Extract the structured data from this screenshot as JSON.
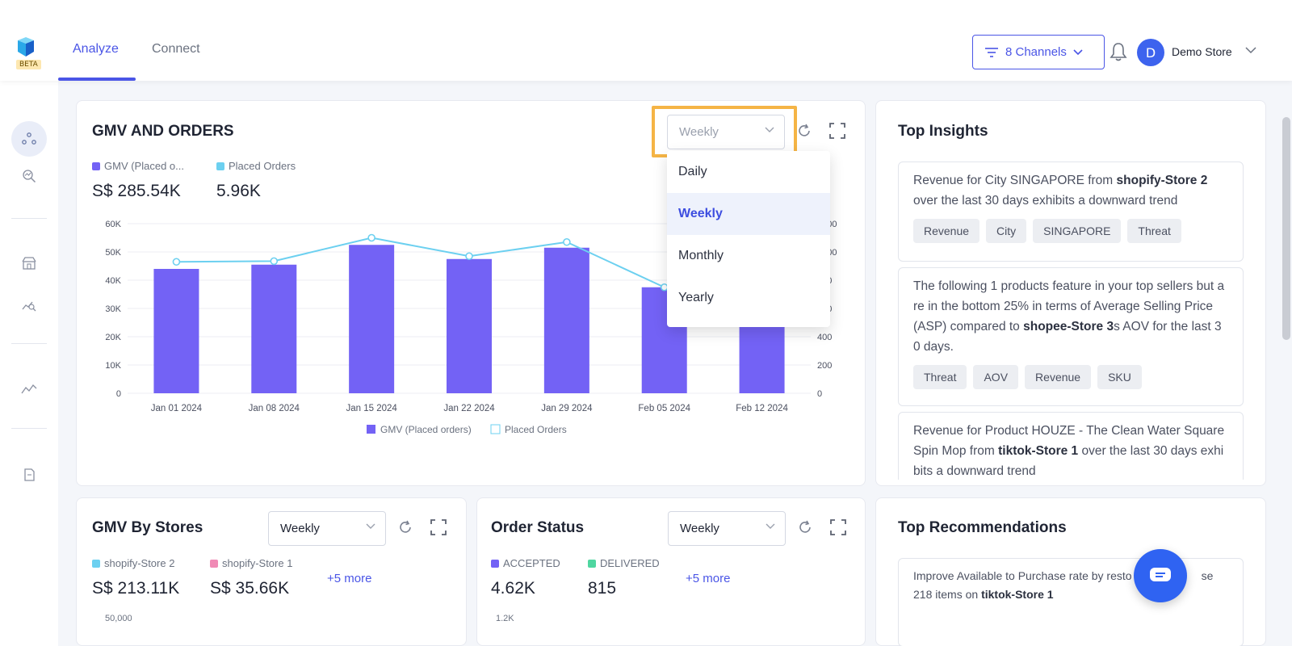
{
  "header": {
    "logo_badge": "BETA",
    "tabs": [
      {
        "label": "Analyze"
      },
      {
        "label": "Connect"
      }
    ],
    "channels_button": "8 Channels",
    "avatar_initial": "D",
    "store_name": "Demo Store"
  },
  "gmv_orders": {
    "title": "GMV AND ORDERS",
    "period_select": "Weekly",
    "legend": [
      {
        "label": "GMV (Placed o...",
        "color": "#7362f5"
      },
      {
        "label": "Placed Orders",
        "color": "#6cd0f0"
      }
    ],
    "metrics": {
      "gmv": "S$ 285.54K",
      "orders": "5.96K"
    },
    "bottom_legend": [
      "GMV (Placed orders)",
      "Placed Orders"
    ]
  },
  "dropdown": {
    "options": [
      "Daily",
      "Weekly",
      "Monthly",
      "Yearly"
    ],
    "selected": "Weekly"
  },
  "chart_data": {
    "type": "bar",
    "categories": [
      "Jan 01 2024",
      "Jan 08 2024",
      "Jan 15 2024",
      "Jan 22 2024",
      "Jan 29 2024",
      "Feb 05 2024",
      "Feb 12 2024"
    ],
    "series": [
      {
        "name": "GMV (Placed orders)",
        "type": "bar",
        "axis": "left",
        "values": [
          44000,
          45500,
          52500,
          47500,
          51500,
          37500,
          33000
        ]
      },
      {
        "name": "Placed Orders",
        "type": "line",
        "axis": "right",
        "values": [
          930,
          935,
          1100,
          970,
          1070,
          750,
          null
        ]
      }
    ],
    "ylim_left": [
      0,
      60000
    ],
    "yticks_left": [
      "0",
      "10K",
      "20K",
      "30K",
      "40K",
      "50K",
      "60K"
    ],
    "ylim_right": [
      0,
      1200
    ],
    "yticks_right": [
      "0",
      "200",
      "400",
      "600",
      "800",
      "1000",
      "1200"
    ],
    "colors": {
      "bar": "#7362f5",
      "line": "#6cd0f0"
    }
  },
  "insights": {
    "title": "Top Insights",
    "items": [
      {
        "pre": "Revenue for City SINGAPORE from ",
        "bold": "shopify-Store 2",
        "post": " over the last 30 days exhibits a downward trend",
        "tags": [
          "Revenue",
          "City",
          "SINGAPORE",
          "Threat"
        ]
      },
      {
        "pre": "The following 1 products feature in your top sellers but are in the bottom 25% in terms of Average Selling Price (ASP) compared to ",
        "bold": "shopee-Store 3",
        "post": "s AOV for the last 30 days.",
        "tags": [
          "Threat",
          "AOV",
          "Revenue",
          "SKU"
        ]
      },
      {
        "pre": "Revenue for Product HOUZE - The Clean Water Square Spin Mop from ",
        "bold": "tiktok-Store 1",
        "post": " over the last 30 days exhibits a downward trend",
        "tags": []
      }
    ]
  },
  "gmv_stores": {
    "title": "GMV By Stores",
    "period_select": "Weekly",
    "legend": [
      {
        "label": "shopify-Store 2",
        "color": "#6cd0f0"
      },
      {
        "label": "shopify-Store 1",
        "color": "#f08ab5"
      }
    ],
    "metrics": [
      "S$ 213.11K",
      "S$ 35.66K"
    ],
    "more": "+5 more",
    "axis_peek": "50,000"
  },
  "order_status": {
    "title": "Order Status",
    "period_select": "Weekly",
    "legend": [
      {
        "label": "ACCEPTED",
        "color": "#7362f5"
      },
      {
        "label": "DELIVERED",
        "color": "#4fd6a0"
      }
    ],
    "metrics": [
      "4.62K",
      "815"
    ],
    "more": "+5 more",
    "axis_peek": "1.2K"
  },
  "recommendations": {
    "title": "Top Recommendations",
    "text_pre": "Improve Available to Purchase rate by resto",
    "text_mid": "se 218 items on ",
    "text_bold": "tiktok-Store 1"
  }
}
